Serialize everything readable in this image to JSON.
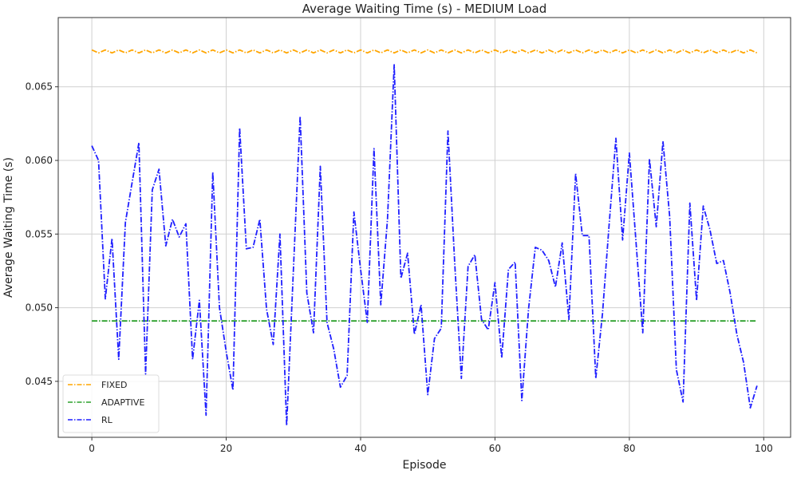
{
  "chart_data": {
    "type": "line",
    "title": "Average Waiting Time (s) - MEDIUM Load",
    "xlabel": "Episode",
    "ylabel": "Average Waiting Time (s)",
    "xlim": [
      -5,
      104
    ],
    "ylim": [
      0.0412,
      0.0697
    ],
    "xticks": [
      0,
      20,
      40,
      60,
      80,
      100
    ],
    "yticks": [
      0.045,
      0.05,
      0.055,
      0.06,
      0.065
    ],
    "ytick_labels": [
      "0.045",
      "0.050",
      "0.055",
      "0.060",
      "0.065"
    ],
    "grid": true,
    "legend_position": "lower-left",
    "x_start": 0,
    "series": [
      {
        "name": "FIXED",
        "color": "#FFA500",
        "style": "dashdot",
        "values": [
          0.0675,
          0.0673,
          0.0675,
          0.0673,
          0.0675,
          0.0673,
          0.0675,
          0.0673,
          0.0675,
          0.0673,
          0.0675,
          0.0673,
          0.0675,
          0.0673,
          0.0675,
          0.0673,
          0.0675,
          0.0673,
          0.0675,
          0.0673,
          0.0675,
          0.0673,
          0.0675,
          0.0673,
          0.0675,
          0.0673,
          0.0675,
          0.0673,
          0.0675,
          0.0673,
          0.0675,
          0.0673,
          0.0675,
          0.0673,
          0.0675,
          0.0673,
          0.0675,
          0.0673,
          0.0675,
          0.0673,
          0.0675,
          0.0673,
          0.0675,
          0.0673,
          0.0675,
          0.0673,
          0.0675,
          0.0673,
          0.0675,
          0.0673,
          0.0675,
          0.0673,
          0.0675,
          0.0673,
          0.0675,
          0.0673,
          0.0675,
          0.0673,
          0.0675,
          0.0673,
          0.0675,
          0.0673,
          0.0675,
          0.0673,
          0.0675,
          0.0673,
          0.0675,
          0.0673,
          0.0675,
          0.0673,
          0.0675,
          0.0673,
          0.0675,
          0.0673,
          0.0675,
          0.0673,
          0.0675,
          0.0673,
          0.0675,
          0.0673,
          0.0675,
          0.0673,
          0.0675,
          0.0673,
          0.0675,
          0.0673,
          0.0675,
          0.0673,
          0.0675,
          0.0673,
          0.0675,
          0.0673,
          0.0675,
          0.0673,
          0.0675,
          0.0673,
          0.0675,
          0.0673,
          0.0675,
          0.0673
        ]
      },
      {
        "name": "ADAPTIVE",
        "color": "#2CA02C",
        "style": "dashdot",
        "constant": 0.0491
      },
      {
        "name": "RL",
        "color": "#1F1FFF",
        "style": "dashdot",
        "values": [
          0.061,
          0.06,
          0.0506,
          0.0547,
          0.0465,
          0.0558,
          0.0585,
          0.0612,
          0.0455,
          0.058,
          0.0594,
          0.0542,
          0.056,
          0.0548,
          0.0557,
          0.0465,
          0.0505,
          0.0427,
          0.0592,
          0.05,
          0.047,
          0.0444,
          0.0622,
          0.054,
          0.0541,
          0.056,
          0.0499,
          0.0475,
          0.055,
          0.042,
          0.0526,
          0.063,
          0.051,
          0.0483,
          0.0596,
          0.049,
          0.0472,
          0.0446,
          0.0454,
          0.0565,
          0.0526,
          0.049,
          0.0608,
          0.0502,
          0.056,
          0.0665,
          0.052,
          0.0537,
          0.0482,
          0.0502,
          0.0441,
          0.0479,
          0.0486,
          0.062,
          0.0531,
          0.0452,
          0.0528,
          0.0536,
          0.0492,
          0.0485,
          0.0517,
          0.0466,
          0.0526,
          0.0531,
          0.0437,
          0.0499,
          0.0541,
          0.0539,
          0.0532,
          0.0514,
          0.0544,
          0.0492,
          0.0591,
          0.0549,
          0.0549,
          0.0452,
          0.0496,
          0.0557,
          0.0615,
          0.0546,
          0.0605,
          0.0544,
          0.0483,
          0.0601,
          0.0555,
          0.0613,
          0.0562,
          0.0458,
          0.0436,
          0.0571,
          0.0505,
          0.0569,
          0.0553,
          0.053,
          0.0532,
          0.051,
          0.0482,
          0.0463,
          0.0432,
          0.0447
        ]
      }
    ]
  }
}
